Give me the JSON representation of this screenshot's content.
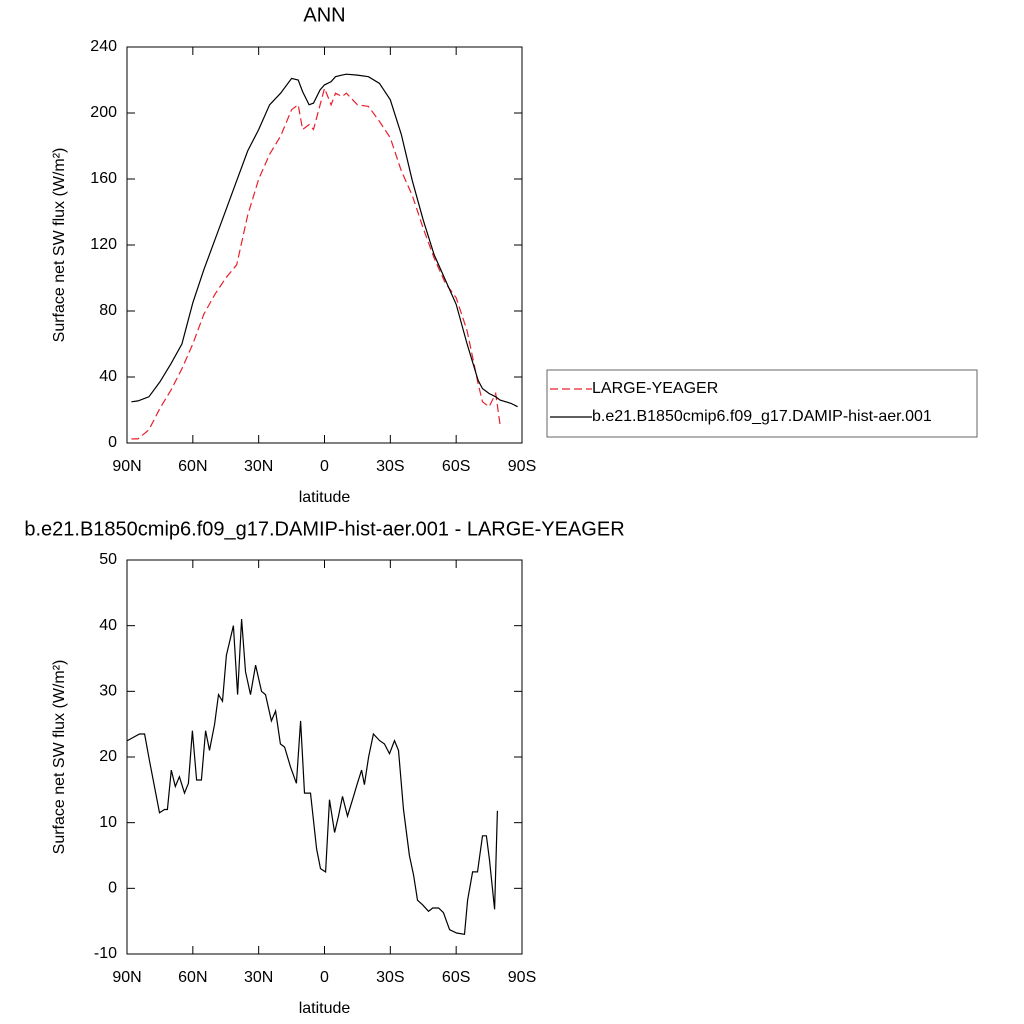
{
  "chart_data": [
    {
      "type": "line",
      "title": "ANN",
      "xlabel": "latitude",
      "ylabel": "Surface net SW flux (W/m²)",
      "xlim": [
        90,
        -90
      ],
      "xticks": [
        {
          "value": 90,
          "label": "90N"
        },
        {
          "value": 60,
          "label": "60N"
        },
        {
          "value": 30,
          "label": "30N"
        },
        0,
        {
          "value": -30,
          "label": "30S"
        },
        {
          "value": -60,
          "label": "60S"
        },
        {
          "value": -90,
          "label": "90S"
        }
      ],
      "ylim": [
        0,
        240
      ],
      "yticks": [
        0,
        40,
        80,
        120,
        160,
        200,
        240
      ],
      "legend": "right",
      "x": [
        88,
        85,
        80,
        75,
        70,
        65,
        60,
        55,
        50,
        45,
        40,
        35,
        30,
        25,
        20,
        15,
        12,
        10,
        7,
        5,
        2,
        0,
        -3,
        -5,
        -8,
        -10,
        -15,
        -20,
        -25,
        -30,
        -35,
        -40,
        -45,
        -50,
        -55,
        -60,
        -65,
        -70,
        -72,
        -75,
        -78,
        -80,
        -85,
        -88
      ],
      "series": [
        {
          "name": "LARGE-YEAGER",
          "color": "#e8202a",
          "line_style": "dashed",
          "values": [
            2.5,
            2.5,
            8,
            21,
            32,
            45,
            60,
            78,
            90,
            100,
            108,
            138,
            160,
            175,
            186,
            202,
            205,
            190,
            193,
            190,
            205,
            215,
            205,
            212,
            210,
            212,
            205,
            204,
            195,
            185,
            165,
            150,
            130,
            112,
            97,
            88,
            68,
            36,
            25,
            22,
            30,
            11,
            null,
            null
          ]
        },
        {
          "name": "b.e21.B1850cmip6.f09_g17.DAMIP-hist-aer.001",
          "color": "#000000",
          "line_style": "solid",
          "values": [
            25,
            25.5,
            28,
            37,
            48,
            60,
            85,
            105,
            123,
            141,
            159,
            177,
            190,
            205,
            212,
            221,
            220,
            213,
            205,
            206,
            214,
            217,
            219,
            222,
            223,
            223.5,
            223,
            222,
            218,
            208,
            187,
            159,
            135,
            114,
            99,
            84,
            60,
            38,
            33,
            30,
            28,
            26,
            24,
            22
          ]
        }
      ]
    },
    {
      "type": "line",
      "title": "b.e21.B1850cmip6.f09_g17.DAMIP-hist-aer.001 - LARGE-YEAGER",
      "xlabel": "latitude",
      "ylabel": "Surface net SW flux (W/m²)",
      "xlim": [
        90,
        -90
      ],
      "xticks": [
        {
          "value": 90,
          "label": "90N"
        },
        {
          "value": 60,
          "label": "60N"
        },
        {
          "value": 30,
          "label": "30N"
        },
        0,
        {
          "value": -30,
          "label": "30S"
        },
        {
          "value": -60,
          "label": "60S"
        },
        {
          "value": -90,
          "label": "90S"
        }
      ],
      "ylim": [
        -10,
        50
      ],
      "yticks": [
        -10,
        0,
        10,
        20,
        30,
        40,
        50
      ],
      "x": [
        89.8,
        84.3,
        82,
        79.8,
        75.2,
        72.9,
        71.6,
        69.8,
        68,
        66.1,
        63.8,
        62,
        60.2,
        58.3,
        56.1,
        54.2,
        52.4,
        50.1,
        48.3,
        46.5,
        44.7,
        41.5,
        39.6,
        37.8,
        36,
        33.7,
        31.4,
        28.7,
        26.9,
        24.2,
        22.3,
        20.1,
        18.2,
        15.5,
        12.8,
        10.9,
        9.1,
        6.4,
        3.6,
        1.8,
        -0.5,
        -2.3,
        -4.6,
        -6.4,
        -8.2,
        -10.5,
        -13.2,
        -15,
        -16.9,
        -18.2,
        -20.1,
        -22.3,
        -25.1,
        -27.3,
        -29.6,
        -31.9,
        -33.7,
        -36,
        -38.7,
        -40.6,
        -42.4,
        -44.7,
        -47.4,
        -49.3,
        -52,
        -54.2,
        -57,
        -60.2,
        -63.8,
        -65.2,
        -67.5,
        -69.7,
        -72,
        -73.8,
        -75.2,
        -77.5,
        -78.8
      ],
      "series": [
        {
          "name": null,
          "color": "#000000",
          "line_style": "solid",
          "values": [
            22.5,
            23.5,
            23.5,
            19.5,
            11.5,
            12,
            12,
            18,
            15.5,
            17,
            14.5,
            16,
            24,
            16.5,
            16.5,
            24,
            21,
            25,
            29.5,
            28.5,
            35.5,
            40,
            29.5,
            41,
            33,
            29.5,
            34,
            30,
            29.5,
            25.5,
            27,
            22,
            21.5,
            18.5,
            16,
            25.5,
            14.5,
            14.5,
            6,
            3,
            2.5,
            13.5,
            8.5,
            11,
            14,
            11,
            14,
            16,
            18,
            15.8,
            20,
            23.5,
            22.5,
            22,
            20.5,
            22.5,
            21,
            12,
            5,
            2,
            -1.8,
            -2.5,
            -3.5,
            -3,
            -3,
            -3.7,
            -6.3,
            -6.8,
            -7,
            -1.8,
            2.5,
            2.5,
            8,
            8,
            4.3,
            -3.2,
            11.8
          ]
        }
      ]
    }
  ]
}
